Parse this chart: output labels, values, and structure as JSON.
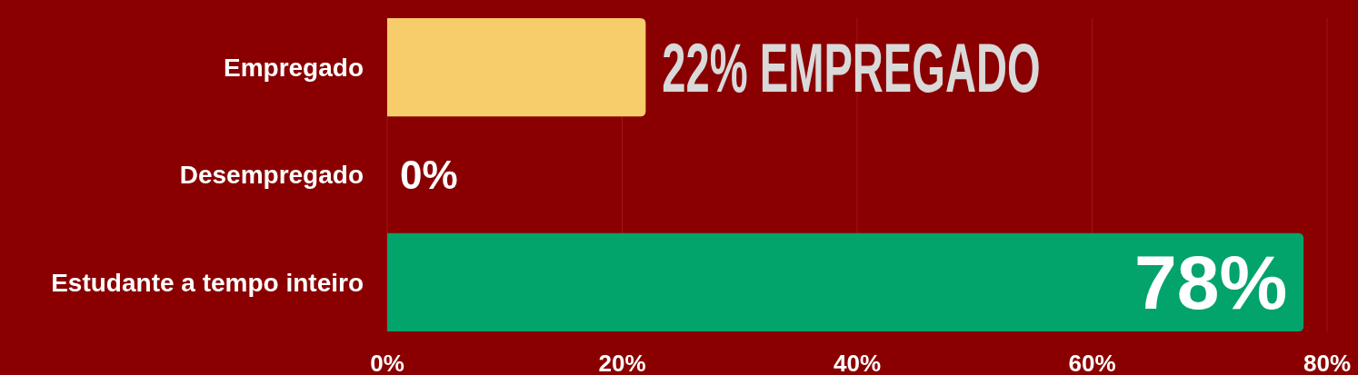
{
  "chart_data": {
    "type": "bar",
    "orientation": "horizontal",
    "categories": [
      "Empregado",
      "Desempregado",
      "Estudante a tempo inteiro"
    ],
    "values": [
      22,
      0,
      78
    ],
    "colors": [
      "#f6cd6a",
      "#f6cd6a",
      "#03a36c"
    ],
    "value_labels": [
      "22% EMPREGADO",
      "0%",
      "78%"
    ],
    "xlim": [
      0,
      80
    ],
    "xticks": [
      {
        "value": 0,
        "label": "0%"
      },
      {
        "value": 20,
        "label": "20%"
      },
      {
        "value": 40,
        "label": "40%"
      },
      {
        "value": 60,
        "label": "60%"
      },
      {
        "value": 80,
        "label": "80%"
      }
    ],
    "grid": "x"
  }
}
